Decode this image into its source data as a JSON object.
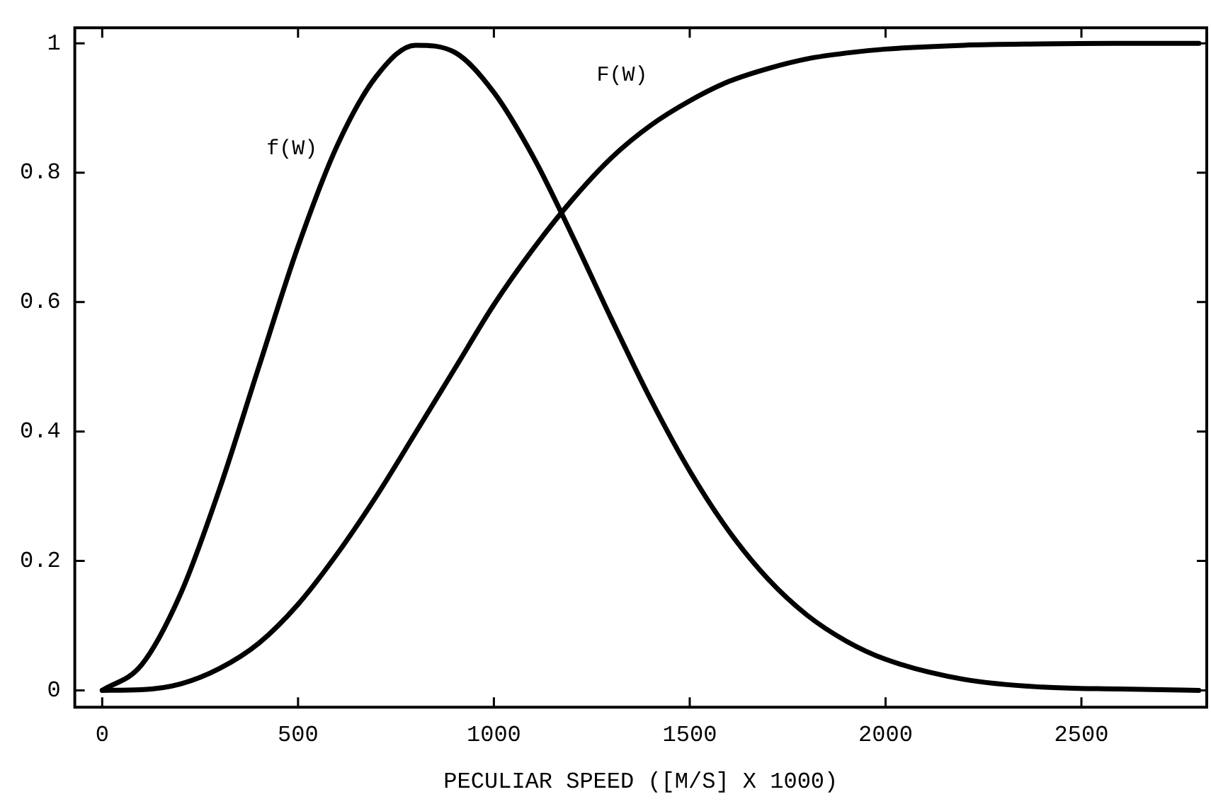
{
  "chart_data": {
    "type": "line",
    "xlabel": "PECULIAR SPEED ([M/S] X 1000)",
    "x": [
      0,
      100,
      200,
      300,
      400,
      500,
      600,
      700,
      800,
      900,
      1000,
      1100,
      1200,
      1300,
      1400,
      1500,
      1600,
      1700,
      1800,
      1900,
      2000,
      2200,
      2400,
      2600,
      2800
    ],
    "series": [
      {
        "name": "f(W)",
        "color": "#000000",
        "values": [
          0,
          0.039,
          0.149,
          0.312,
          0.5,
          0.686,
          0.842,
          0.949,
          0.997,
          0.986,
          0.924,
          0.825,
          0.703,
          0.574,
          0.45,
          0.339,
          0.246,
          0.172,
          0.116,
          0.076,
          0.048,
          0.017,
          0.005,
          0.002,
          0.0
        ]
      },
      {
        "name": "F(W)",
        "color": "#000000",
        "values": [
          0,
          0.001,
          0.01,
          0.034,
          0.073,
          0.133,
          0.211,
          0.3,
          0.398,
          0.497,
          0.596,
          0.682,
          0.758,
          0.823,
          0.873,
          0.911,
          0.941,
          0.961,
          0.976,
          0.985,
          0.991,
          0.997,
          0.999,
          1.0,
          1.0
        ]
      }
    ],
    "xlim": [
      -70,
      2820
    ],
    "xticks": [
      0,
      500,
      1000,
      1500,
      2000,
      2500
    ],
    "ylim": [
      -0.026,
      1.024
    ],
    "yticks": [
      0,
      0.2,
      0.4,
      0.6,
      0.8,
      1
    ],
    "grid": false,
    "legend": false,
    "marker": "none",
    "line_style": "solid"
  }
}
